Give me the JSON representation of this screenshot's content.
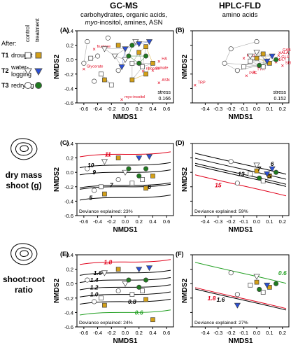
{
  "headers": {
    "gcms_title": "GC-MS",
    "gcms_sub1": "carbohydrates, organic acids,",
    "gcms_sub2_italic": "myo",
    "gcms_sub2_rest": "-inositol, amines, ASN",
    "hplc_title": "HPLC-FLD",
    "hplc_sub": "amino acids"
  },
  "legend": {
    "col_control": "control",
    "col_treatment": "treatment",
    "after": "After:",
    "rows": [
      {
        "code": "T1",
        "label": "drought",
        "shape": "square"
      },
      {
        "code": "T2",
        "label": "water-",
        "label2": "logging",
        "shape": "triangle"
      },
      {
        "code": "T3",
        "label": "redrying",
        "shape": "circle"
      }
    ],
    "colors": {
      "T1_control": "#ffffff",
      "T1_treatment": "#d4a017",
      "T2_control": "#ffffff",
      "T2_treatment": "#2a4fd6",
      "T3_control": "#ffffff",
      "T3_treatment": "#1f7a1f"
    }
  },
  "row_labels": {
    "dry_mass_1": "dry mass",
    "dry_mass_2": "shoot (g)",
    "shoot_root_1": "shoot:root",
    "shoot_root_2": "ratio"
  },
  "axis": {
    "xlabel": "NMDS1",
    "ylabel": "NMDS2"
  },
  "chart_data": [
    {
      "id": "A",
      "type": "scatter",
      "panel_label": "(A)",
      "xlim": [
        -0.7,
        0.7
      ],
      "ylim": [
        -0.6,
        0.4
      ],
      "xticks": [
        "-0.6",
        "-0.4",
        "-0.2",
        "0.0",
        "0.2",
        "0.4",
        "0.6"
      ],
      "yticks": [
        "0.4",
        "0.2",
        "0.0",
        "-0.2",
        "-0.4",
        "-0.6"
      ],
      "stress_label": "stress",
      "stress": "0.166",
      "vectors": [
        {
          "label": "fructose",
          "x": -0.45,
          "y": 0.15
        },
        {
          "label": "Glycerate",
          "x": -0.6,
          "y": -0.13
        },
        {
          "label": "HA",
          "x": 0.49,
          "y": -0.02
        },
        {
          "label": "ASN",
          "x": 0.49,
          "y": -0.32
        },
        {
          "label": "quinate",
          "x": 0.4,
          "y": -0.15
        },
        {
          "label": "ribonate",
          "x": 0.26,
          "y": -0.16
        },
        {
          "label": "myo-inositol",
          "x": -0.05,
          "y": -0.55
        }
      ],
      "points": [
        {
          "g": "T1c",
          "x": -0.5,
          "y": 0.02
        },
        {
          "g": "T1c",
          "x": -0.35,
          "y": -0.2
        },
        {
          "g": "T1c",
          "x": -0.2,
          "y": -0.35
        },
        {
          "g": "T1c",
          "x": 0.1,
          "y": -0.05
        },
        {
          "g": "T1c",
          "x": 0.25,
          "y": -0.1
        },
        {
          "g": "T1t",
          "x": -0.1,
          "y": 0.2
        },
        {
          "g": "T1t",
          "x": 0.1,
          "y": -0.28
        },
        {
          "g": "T1t",
          "x": 0.2,
          "y": 0.1
        },
        {
          "g": "T1t",
          "x": 0.3,
          "y": -0.2
        },
        {
          "g": "T1t",
          "x": 0.4,
          "y": -0.05
        },
        {
          "g": "T1t",
          "x": 0.3,
          "y": 0.18
        },
        {
          "g": "T1t",
          "x": -0.3,
          "y": -0.28
        },
        {
          "g": "T2c",
          "x": -0.3,
          "y": 0.15
        },
        {
          "g": "T2c",
          "x": 0.0,
          "y": 0.0
        },
        {
          "g": "T2c",
          "x": 0.15,
          "y": 0.25
        },
        {
          "g": "T2c",
          "x": -0.15,
          "y": 0.05
        },
        {
          "g": "T2t",
          "x": 0.0,
          "y": 0.15
        },
        {
          "g": "T2t",
          "x": 0.2,
          "y": 0.22
        },
        {
          "g": "T2t",
          "x": 0.35,
          "y": 0.25
        },
        {
          "g": "T2t",
          "x": -0.05,
          "y": -0.1
        },
        {
          "g": "T3c",
          "x": -0.55,
          "y": 0.25
        },
        {
          "g": "T3c",
          "x": -0.6,
          "y": -0.05
        },
        {
          "g": "T3c",
          "x": -0.45,
          "y": -0.3
        },
        {
          "g": "T3c",
          "x": -0.1,
          "y": -0.15
        },
        {
          "g": "T3c",
          "x": -0.25,
          "y": 0.3
        },
        {
          "g": "T3c",
          "x": -0.4,
          "y": 0.05
        },
        {
          "g": "T3t",
          "x": 0.05,
          "y": 0.05
        },
        {
          "g": "T3t",
          "x": 0.2,
          "y": -0.05
        },
        {
          "g": "T3t",
          "x": 0.3,
          "y": 0.05
        },
        {
          "g": "T3t",
          "x": 0.1,
          "y": 0.2
        }
      ]
    },
    {
      "id": "B",
      "type": "scatter",
      "panel_label": "(B)",
      "xlim": [
        -0.5,
        0.25
      ],
      "ylim": [
        -0.6,
        0.4
      ],
      "xticks": [
        "-0.4",
        "-0.3",
        "-0.2",
        "-0.1",
        "0.0",
        "0.1",
        "0.2"
      ],
      "yticks": [],
      "stress_label": "stress",
      "stress": "0.152",
      "vectors": [
        {
          "label": "PRO",
          "x": -0.1,
          "y": 0.02
        },
        {
          "label": "GABA",
          "x": 0.18,
          "y": 0.1
        },
        {
          "label": "ALA",
          "x": 0.17,
          "y": 0.06
        },
        {
          "label": "GLU",
          "x": 0.17,
          "y": 0.0
        },
        {
          "label": "GLY",
          "x": 0.15,
          "y": -0.03
        },
        {
          "label": "SER",
          "x": 0.2,
          "y": -0.08
        },
        {
          "label": "TYR",
          "x": -0.02,
          "y": -0.17
        },
        {
          "label": "PHE",
          "x": -0.08,
          "y": -0.22
        },
        {
          "label": "TRP",
          "x": -0.48,
          "y": -0.35
        }
      ],
      "points": [
        {
          "g": "T1c",
          "x": -0.05,
          "y": -0.02
        },
        {
          "g": "T1c",
          "x": 0.05,
          "y": -0.1
        },
        {
          "g": "T1c",
          "x": -0.1,
          "y": -0.1
        },
        {
          "g": "T1t",
          "x": 0.0,
          "y": 0.02
        },
        {
          "g": "T1t",
          "x": 0.1,
          "y": -0.05
        },
        {
          "g": "T1t",
          "x": 0.05,
          "y": 0.08
        },
        {
          "g": "T2c",
          "x": 0.0,
          "y": 0.1
        },
        {
          "g": "T2c",
          "x": -0.05,
          "y": 0.05
        },
        {
          "g": "T2t",
          "x": 0.08,
          "y": -0.02
        },
        {
          "g": "T2t",
          "x": 0.12,
          "y": 0.05
        },
        {
          "g": "T3c",
          "x": -0.2,
          "y": 0.15
        },
        {
          "g": "T3c",
          "x": -0.15,
          "y": -0.15
        },
        {
          "g": "T3c",
          "x": -0.25,
          "y": -0.05
        },
        {
          "g": "T3c",
          "x": 0.0,
          "y": 0.25
        },
        {
          "g": "T3t",
          "x": 0.02,
          "y": -0.08
        },
        {
          "g": "T3t",
          "x": 0.15,
          "y": 0.0
        }
      ]
    },
    {
      "id": "C",
      "type": "scatter",
      "panel_label": "(C)",
      "xlim": [
        -0.7,
        0.7
      ],
      "ylim": [
        -0.6,
        0.4
      ],
      "xticks": [
        "-0.6",
        "-0.4",
        "-0.2",
        "0.0",
        "0.2",
        "0.4",
        "0.6"
      ],
      "yticks": [
        "0.4",
        "0.2",
        "0.0",
        "-0.2",
        "-0.4",
        "-0.6"
      ],
      "deviance": "Deviance explained: 23%",
      "contour_labels": [
        {
          "text": "11",
          "x": -0.25,
          "y": 0.25,
          "c": "red"
        },
        {
          "text": "10",
          "x": -0.5,
          "y": 0.1,
          "c": "black"
        },
        {
          "text": "9",
          "x": -0.45,
          "y": 0.0,
          "c": "black"
        },
        {
          "text": "7",
          "x": -0.2,
          "y": -0.18,
          "c": "black"
        },
        {
          "text": "6",
          "x": 0.35,
          "y": -0.2,
          "c": "black"
        },
        {
          "text": "5",
          "x": -0.5,
          "y": -0.35,
          "c": "black"
        }
      ],
      "points": [
        {
          "g": "T1c",
          "x": 0.1,
          "y": -0.15
        },
        {
          "g": "T1c",
          "x": 0.25,
          "y": -0.1
        },
        {
          "g": "T1c",
          "x": -0.35,
          "y": -0.2
        },
        {
          "g": "T1t",
          "x": -0.1,
          "y": 0.2
        },
        {
          "g": "T1t",
          "x": 0.3,
          "y": -0.22
        },
        {
          "g": "T1t",
          "x": 0.4,
          "y": -0.05
        },
        {
          "g": "T1t",
          "x": -0.3,
          "y": -0.3
        },
        {
          "g": "T2c",
          "x": 0.0,
          "y": 0.0
        },
        {
          "g": "T2c",
          "x": -0.3,
          "y": 0.15
        },
        {
          "g": "T2t",
          "x": 0.2,
          "y": 0.2
        },
        {
          "g": "T2t",
          "x": 0.35,
          "y": 0.22
        },
        {
          "g": "T3c",
          "x": -0.55,
          "y": 0.05
        },
        {
          "g": "T3c",
          "x": -0.45,
          "y": -0.25
        },
        {
          "g": "T3c",
          "x": -0.1,
          "y": -0.1
        },
        {
          "g": "T3t",
          "x": 0.05,
          "y": 0.05
        },
        {
          "g": "T3t",
          "x": 0.2,
          "y": -0.05
        },
        {
          "g": "T3t",
          "x": 0.3,
          "y": 0.05
        }
      ]
    },
    {
      "id": "D",
      "type": "scatter",
      "panel_label": "(D)",
      "xlim": [
        -0.5,
        0.25
      ],
      "ylim": [
        -0.6,
        0.4
      ],
      "xticks": [
        "-0.4",
        "-0.3",
        "-0.2",
        "-0.1",
        "0.0",
        "0.1",
        "0.2"
      ],
      "yticks": [],
      "deviance": "Deviance explained: 59%",
      "contour_labels": [
        {
          "text": "6",
          "x": 0.12,
          "y": 0.12,
          "c": "black"
        },
        {
          "text": "7",
          "x": 0.02,
          "y": 0.05,
          "c": "black"
        },
        {
          "text": "5",
          "x": 0.1,
          "y": -0.05,
          "c": "black"
        },
        {
          "text": "13",
          "x": -0.12,
          "y": -0.02,
          "c": "black"
        },
        {
          "text": "15",
          "x": -0.3,
          "y": -0.18,
          "c": "red"
        }
      ],
      "points": [
        {
          "g": "T1c",
          "x": -0.05,
          "y": -0.02
        },
        {
          "g": "T1c",
          "x": 0.05,
          "y": -0.12
        },
        {
          "g": "T1t",
          "x": 0.0,
          "y": 0.02
        },
        {
          "g": "T1t",
          "x": 0.1,
          "y": -0.05
        },
        {
          "g": "T2c",
          "x": 0.0,
          "y": 0.1
        },
        {
          "g": "T2t",
          "x": 0.08,
          "y": -0.02
        },
        {
          "g": "T2t",
          "x": 0.12,
          "y": 0.05
        },
        {
          "g": "T3c",
          "x": -0.2,
          "y": 0.15
        },
        {
          "g": "T3c",
          "x": -0.15,
          "y": -0.15
        },
        {
          "g": "T3t",
          "x": 0.02,
          "y": -0.08
        },
        {
          "g": "T3t",
          "x": 0.15,
          "y": 0.0
        }
      ]
    },
    {
      "id": "E",
      "type": "scatter",
      "panel_label": "(E)",
      "xlim": [
        -0.7,
        0.7
      ],
      "ylim": [
        -0.6,
        0.4
      ],
      "xticks": [
        "-0.6",
        "-0.4",
        "-0.2",
        "0.0",
        "0.2",
        "0.4",
        "0.6"
      ],
      "yticks": [
        "0.4",
        "0.2",
        "0.0",
        "-0.2",
        "-0.4",
        "-0.6"
      ],
      "deviance": "Deviance explained: 24%",
      "contour_labels": [
        {
          "text": "1.8",
          "x": -0.25,
          "y": 0.3,
          "c": "red"
        },
        {
          "text": "1.6",
          "x": -0.4,
          "y": 0.15,
          "c": "black"
        },
        {
          "text": "1.4",
          "x": -0.45,
          "y": 0.05,
          "c": "black"
        },
        {
          "text": "1.2",
          "x": -0.45,
          "y": -0.05,
          "c": "black"
        },
        {
          "text": "1.0",
          "x": -0.45,
          "y": -0.15,
          "c": "black"
        },
        {
          "text": "0.8",
          "x": 0.1,
          "y": -0.25,
          "c": "black"
        },
        {
          "text": "0.6",
          "x": 0.2,
          "y": -0.4,
          "c": "green"
        }
      ],
      "points": [
        {
          "g": "T1c",
          "x": 0.1,
          "y": -0.15
        },
        {
          "g": "T1c",
          "x": 0.25,
          "y": -0.1
        },
        {
          "g": "T1c",
          "x": -0.35,
          "y": -0.2
        },
        {
          "g": "T1t",
          "x": -0.1,
          "y": 0.2
        },
        {
          "g": "T1t",
          "x": 0.3,
          "y": -0.22
        },
        {
          "g": "T1t",
          "x": 0.4,
          "y": -0.5
        },
        {
          "g": "T1t",
          "x": -0.3,
          "y": -0.3
        },
        {
          "g": "T2c",
          "x": 0.0,
          "y": 0.0
        },
        {
          "g": "T2c",
          "x": -0.3,
          "y": 0.15
        },
        {
          "g": "T2t",
          "x": 0.2,
          "y": 0.2
        },
        {
          "g": "T2t",
          "x": 0.35,
          "y": 0.22
        },
        {
          "g": "T3c",
          "x": -0.55,
          "y": 0.05
        },
        {
          "g": "T3c",
          "x": -0.45,
          "y": -0.25
        },
        {
          "g": "T3c",
          "x": -0.1,
          "y": -0.1
        },
        {
          "g": "T3t",
          "x": 0.05,
          "y": 0.05
        },
        {
          "g": "T3t",
          "x": 0.2,
          "y": -0.05
        },
        {
          "g": "T3t",
          "x": 0.3,
          "y": 0.05
        }
      ]
    },
    {
      "id": "F",
      "type": "scatter",
      "panel_label": "(F)",
      "xlim": [
        -0.5,
        0.25
      ],
      "ylim": [
        -0.6,
        0.4
      ],
      "xticks": [
        "-0.4",
        "-0.3",
        "-0.2",
        "-0.1",
        "0.0",
        "0.1",
        "0.2"
      ],
      "yticks": [],
      "deviance": "Deviance explained: 27%",
      "contour_labels": [
        {
          "text": "1.8",
          "x": -0.35,
          "y": -0.2,
          "c": "red"
        },
        {
          "text": "1.6",
          "x": -0.28,
          "y": -0.22,
          "c": "black"
        },
        {
          "text": "0.6",
          "x": 0.2,
          "y": 0.15,
          "c": "green"
        }
      ],
      "points": [
        {
          "g": "T1c",
          "x": -0.05,
          "y": -0.02
        },
        {
          "g": "T1c",
          "x": 0.05,
          "y": -0.12
        },
        {
          "g": "T1t",
          "x": 0.0,
          "y": 0.02
        },
        {
          "g": "T1t",
          "x": 0.1,
          "y": -0.05
        },
        {
          "g": "T2c",
          "x": 0.0,
          "y": 0.1
        },
        {
          "g": "T2t",
          "x": 0.08,
          "y": -0.02
        },
        {
          "g": "T2t",
          "x": -0.15,
          "y": -0.3
        },
        {
          "g": "T3c",
          "x": -0.2,
          "y": 0.15
        },
        {
          "g": "T3c",
          "x": -0.15,
          "y": -0.15
        },
        {
          "g": "T3t",
          "x": 0.02,
          "y": -0.08
        },
        {
          "g": "T3t",
          "x": 0.15,
          "y": 0.0
        }
      ]
    }
  ]
}
